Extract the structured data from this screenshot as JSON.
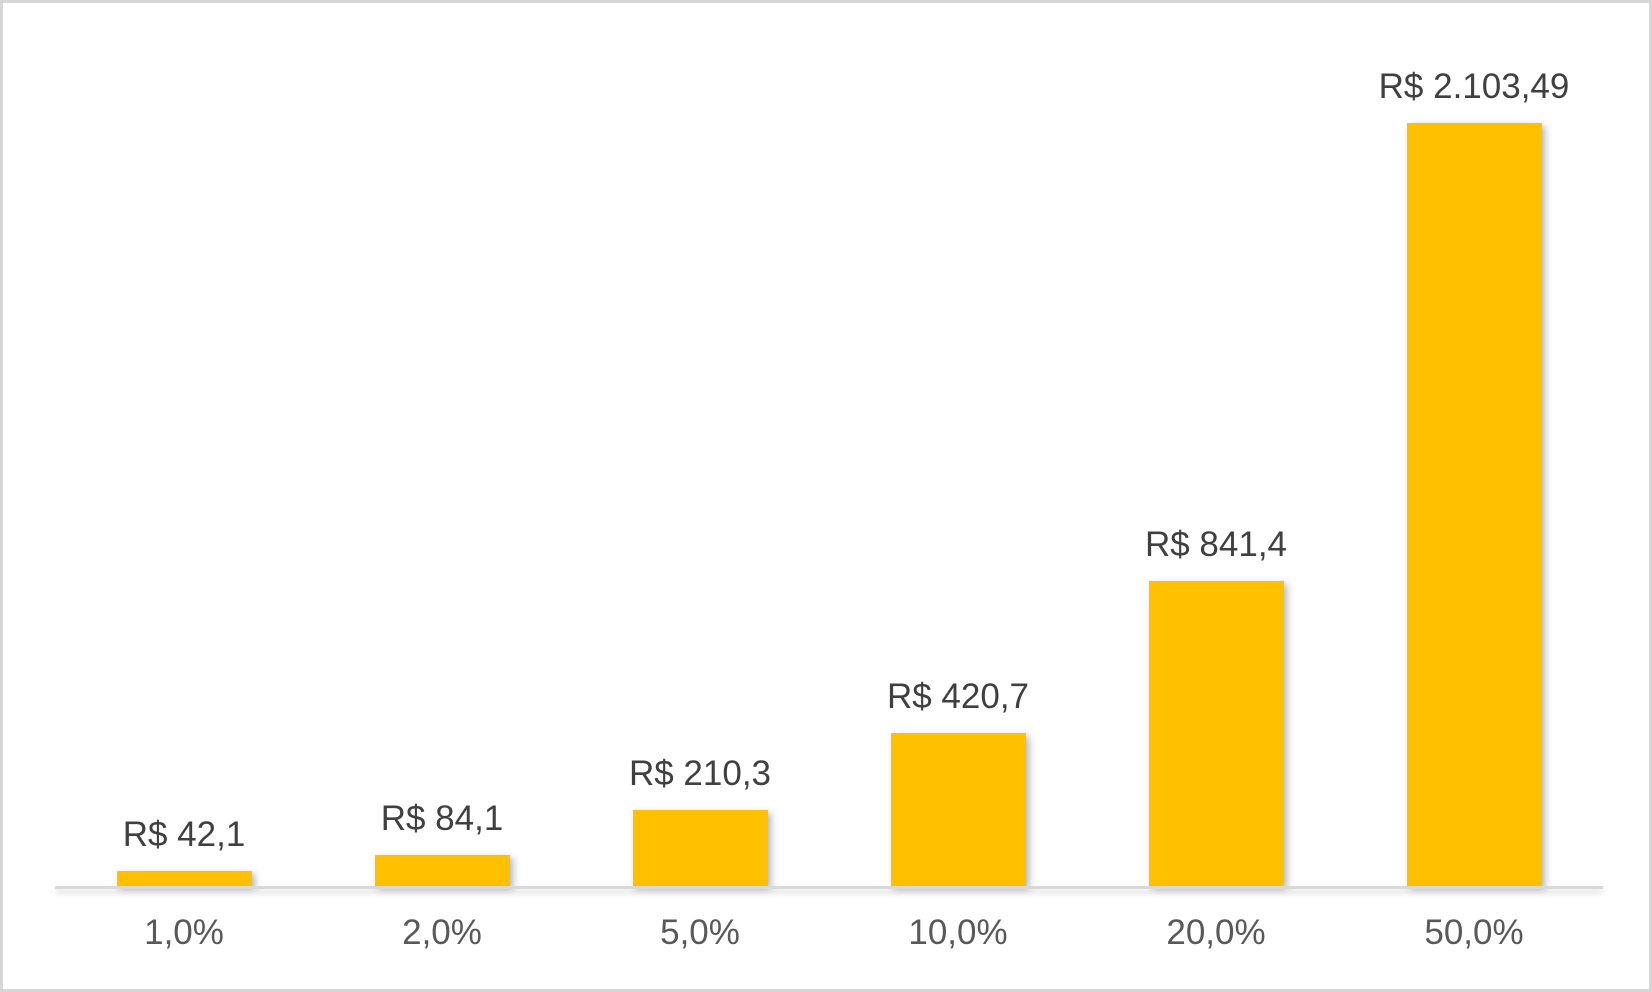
{
  "chart_data": {
    "type": "bar",
    "title": "",
    "xlabel": "",
    "ylabel": "",
    "categories": [
      "1,0%",
      "2,0%",
      "5,0%",
      "10,0%",
      "20,0%",
      "50,0%"
    ],
    "values": [
      42.1,
      84.1,
      210.3,
      420.7,
      841.4,
      2103.49
    ],
    "data_labels": [
      "R$ 42,1",
      "R$ 84,1",
      "R$ 210,3",
      "R$ 420,7",
      "R$ 841,4",
      "R$ 2.103,49"
    ],
    "currency": "R$",
    "ylim": [
      0,
      2103.49
    ],
    "grid": false,
    "legend": false,
    "y_axis_visible": false
  },
  "style": {
    "bar_color": "#FFC000",
    "value_label_color": "#404040",
    "axis_label_color": "#595959",
    "axis_line_color": "#D9D9D9",
    "frame_border_color": "#D6D6D6",
    "background_color": "#FFFFFF"
  }
}
